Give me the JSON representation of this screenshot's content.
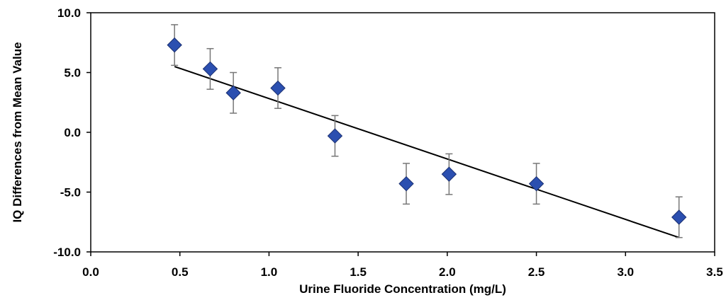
{
  "chart_data": {
    "type": "scatter",
    "title": "",
    "xlabel": "Urine Fluoride Concentration (mg/L)",
    "ylabel": "IQ Differences from Mean Value",
    "xlim": [
      0.0,
      3.5
    ],
    "ylim": [
      -10.0,
      10.0
    ],
    "xticks": [
      "0.0",
      "0.5",
      "1.0",
      "1.5",
      "2.0",
      "2.5",
      "3.0",
      "3.5"
    ],
    "yticks": [
      "10.0",
      "5.0",
      "0.0",
      "-5.0",
      "-10.0"
    ],
    "grid": false,
    "legend": "none",
    "marker_color": "#2b4fb0",
    "series": [
      {
        "points": [
          {
            "x": 0.47,
            "y": 7.3,
            "err": 1.7
          },
          {
            "x": 0.67,
            "y": 5.3,
            "err": 1.7
          },
          {
            "x": 0.8,
            "y": 3.3,
            "err": 1.7
          },
          {
            "x": 1.05,
            "y": 3.7,
            "err": 1.7
          },
          {
            "x": 1.37,
            "y": -0.3,
            "err": 1.7
          },
          {
            "x": 1.77,
            "y": -4.3,
            "err": 1.7
          },
          {
            "x": 2.01,
            "y": -3.5,
            "err": 1.7
          },
          {
            "x": 2.5,
            "y": -4.3,
            "err": 1.7
          },
          {
            "x": 3.3,
            "y": -7.1,
            "err": 1.7
          }
        ]
      }
    ],
    "trendline": {
      "x": [
        0.47,
        3.3
      ],
      "y": [
        5.5,
        -8.8
      ]
    }
  }
}
